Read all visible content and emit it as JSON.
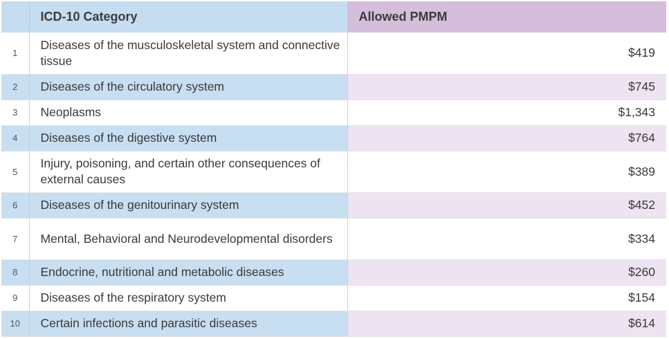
{
  "headers": {
    "index": "",
    "category": "ICD-10 Category",
    "value": "Allowed PMPM"
  },
  "rows": [
    {
      "index": "1",
      "category": "Diseases of the musculoskeletal system and connective tissue",
      "value": "$419"
    },
    {
      "index": "2",
      "category": "Diseases of the circulatory system",
      "value": "$745"
    },
    {
      "index": "3",
      "category": "Neoplasms",
      "value": "$1,343"
    },
    {
      "index": "4",
      "category": "Diseases of the digestive system",
      "value": "$764"
    },
    {
      "index": "5",
      "category": "Injury, poisoning, and certain other consequences of external causes",
      "value": "$389"
    },
    {
      "index": "6",
      "category": "Diseases of the genitourinary system",
      "value": "$452"
    },
    {
      "index": "7",
      "category": "Mental, Behavioral and Neurodevelopmental disorders",
      "value": "$334"
    },
    {
      "index": "8",
      "category": "Endocrine, nutritional and metabolic diseases",
      "value": "$260"
    },
    {
      "index": "9",
      "category": "Diseases of the respiratory system",
      "value": "$154"
    },
    {
      "index": "10",
      "category": "Certain infections and parasitic diseases",
      "value": "$614"
    }
  ],
  "colors": {
    "header_blue": "#c5ddf0",
    "header_purple": "#d4bedb",
    "stripe_blue": "#c8def1",
    "stripe_purple": "#ede3f1"
  }
}
